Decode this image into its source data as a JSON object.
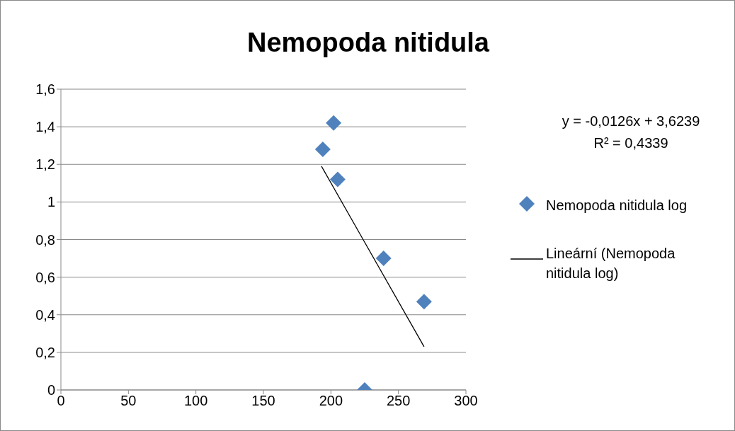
{
  "chart_data": {
    "type": "scatter",
    "title": "Nemopoda nitidula",
    "marker": "diamond",
    "grid": "y",
    "legend": "right",
    "xlim": [
      0,
      300
    ],
    "xticks": [
      0,
      50,
      100,
      150,
      200,
      250,
      300
    ],
    "ylim": [
      0,
      1.6
    ],
    "yticks": [
      0,
      {
        "value": 0.2,
        "label": "0,2"
      },
      {
        "value": 0.4,
        "label": "0,4"
      },
      {
        "value": 0.6,
        "label": "0,6"
      },
      {
        "value": 0.8,
        "label": "0,8"
      },
      1,
      {
        "value": 1.2,
        "label": "1,2"
      },
      {
        "value": 1.4,
        "label": "1,4"
      },
      {
        "value": 1.6,
        "label": "1,6"
      }
    ],
    "series": [
      {
        "name": "Nemopoda nitidula log",
        "color": "#4f81bd",
        "x": [
          194,
          202,
          205,
          225,
          239,
          269
        ],
        "values": [
          1.28,
          1.42,
          1.12,
          0,
          0.7,
          0.47
        ]
      },
      {
        "name": "Lineární (Nemopoda nitidula log)",
        "type": "line",
        "marker": "none",
        "color": "#000000",
        "x": [
          193,
          269
        ],
        "values": [
          1.19,
          0.23
        ]
      }
    ],
    "annotations": [
      "y = -0,0126x + 3,6239",
      "R² = 0,4339"
    ]
  }
}
